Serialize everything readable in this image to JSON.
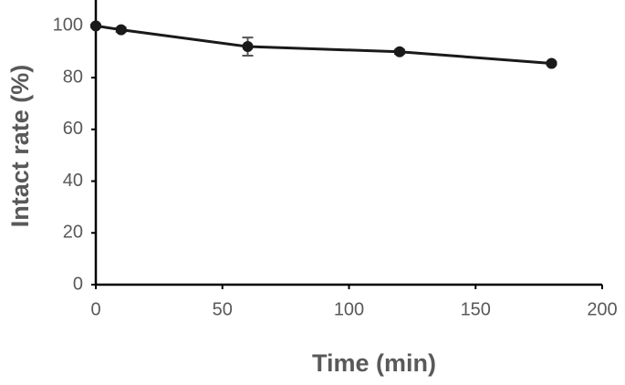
{
  "chart_data": {
    "type": "line",
    "xlabel": "Time (min)",
    "ylabel": "Intact rate (%)",
    "x": [
      0,
      10,
      60,
      120,
      180
    ],
    "values": [
      100,
      98.5,
      92,
      90,
      85.5
    ],
    "errors": [
      0.5,
      0.8,
      3.5,
      0.8,
      0.5
    ],
    "color": "#1a1a1a",
    "xlim": [
      0,
      200
    ],
    "xticks": [
      0,
      50,
      100,
      150,
      200
    ],
    "ylim": [
      0,
      110
    ],
    "yticks": [
      0,
      20,
      40,
      60,
      80,
      100
    ],
    "grid": false
  }
}
